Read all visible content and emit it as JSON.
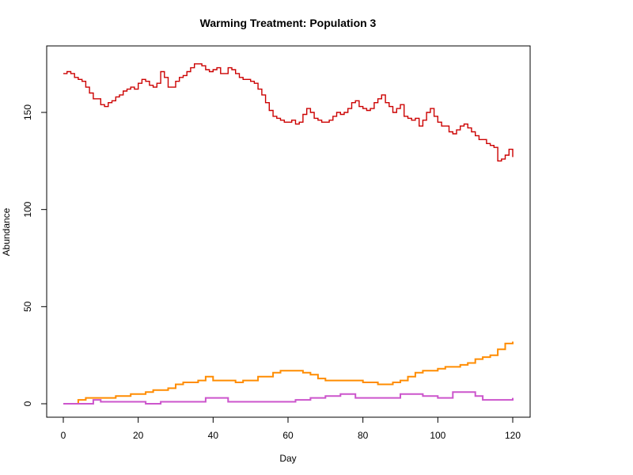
{
  "chart_data": {
    "type": "line",
    "title": "Warming Treatment: Population 3",
    "xlabel": "Day",
    "ylabel": "Abundance",
    "xlim": [
      0,
      120
    ],
    "ylim": [
      0,
      175
    ],
    "xticks": [
      0,
      20,
      40,
      60,
      80,
      100,
      120
    ],
    "yticks": [
      0,
      50,
      100,
      150
    ],
    "grid": false,
    "series": [
      {
        "color": "#cc0000",
        "step": true,
        "x": [
          0,
          1,
          2,
          3,
          4,
          5,
          6,
          7,
          8,
          9,
          10,
          11,
          12,
          13,
          14,
          15,
          16,
          17,
          18,
          19,
          20,
          21,
          22,
          23,
          24,
          25,
          26,
          27,
          28,
          29,
          30,
          31,
          32,
          33,
          34,
          35,
          36,
          37,
          38,
          39,
          40,
          41,
          42,
          43,
          44,
          45,
          46,
          47,
          48,
          49,
          50,
          51,
          52,
          53,
          54,
          55,
          56,
          57,
          58,
          59,
          60,
          61,
          62,
          63,
          64,
          65,
          66,
          67,
          68,
          69,
          70,
          71,
          72,
          73,
          74,
          75,
          76,
          77,
          78,
          79,
          80,
          81,
          82,
          83,
          84,
          85,
          86,
          87,
          88,
          89,
          90,
          91,
          92,
          93,
          94,
          95,
          96,
          97,
          98,
          99,
          100,
          101,
          102,
          103,
          104,
          105,
          106,
          107,
          108,
          109,
          110,
          111,
          112,
          113,
          114,
          115,
          116,
          117,
          118,
          119,
          120
        ],
        "values": [
          170,
          171,
          170,
          168,
          167,
          166,
          163,
          160,
          157,
          157,
          154,
          153,
          155,
          156,
          158,
          159,
          161,
          162,
          163,
          162,
          165,
          167,
          166,
          164,
          163,
          165,
          171,
          168,
          163,
          163,
          166,
          168,
          169,
          171,
          173,
          175,
          175,
          174,
          172,
          171,
          172,
          173,
          170,
          170,
          173,
          172,
          170,
          168,
          167,
          167,
          166,
          165,
          162,
          159,
          155,
          151,
          148,
          147,
          146,
          145,
          145,
          146,
          144,
          145,
          149,
          152,
          150,
          147,
          146,
          145,
          145,
          146,
          148,
          150,
          149,
          150,
          152,
          155,
          156,
          153,
          152,
          151,
          152,
          155,
          157,
          159,
          155,
          153,
          150,
          152,
          154,
          148,
          147,
          146,
          147,
          143,
          146,
          150,
          152,
          148,
          145,
          143,
          143,
          140,
          139,
          141,
          143,
          144,
          142,
          140,
          138,
          136,
          136,
          134,
          133,
          132,
          125,
          126,
          128,
          131,
          127
        ]
      },
      {
        "color": "#ff8c00",
        "step": true,
        "x": [
          0,
          4,
          6,
          8,
          14,
          18,
          22,
          24,
          28,
          30,
          32,
          36,
          38,
          40,
          46,
          48,
          52,
          56,
          58,
          62,
          64,
          66,
          68,
          70,
          76,
          80,
          84,
          86,
          88,
          90,
          92,
          94,
          96,
          100,
          102,
          104,
          106,
          108,
          110,
          112,
          114,
          116,
          118,
          120
        ],
        "values": [
          0,
          2,
          3,
          3,
          4,
          5,
          6,
          7,
          8,
          10,
          11,
          12,
          14,
          12,
          11,
          12,
          14,
          16,
          17,
          17,
          16,
          15,
          13,
          12,
          12,
          11,
          10,
          10,
          11,
          12,
          14,
          16,
          17,
          18,
          19,
          19,
          20,
          21,
          23,
          24,
          25,
          28,
          31,
          32
        ]
      },
      {
        "color": "#cc55cc",
        "step": true,
        "x": [
          0,
          8,
          10,
          22,
          26,
          38,
          44,
          56,
          62,
          66,
          70,
          74,
          78,
          80,
          84,
          90,
          96,
          100,
          104,
          110,
          112,
          116,
          120
        ],
        "values": [
          0,
          2,
          1,
          0,
          1,
          3,
          1,
          1,
          2,
          3,
          4,
          5,
          3,
          3,
          3,
          5,
          4,
          3,
          6,
          4,
          2,
          2,
          3
        ]
      }
    ]
  }
}
